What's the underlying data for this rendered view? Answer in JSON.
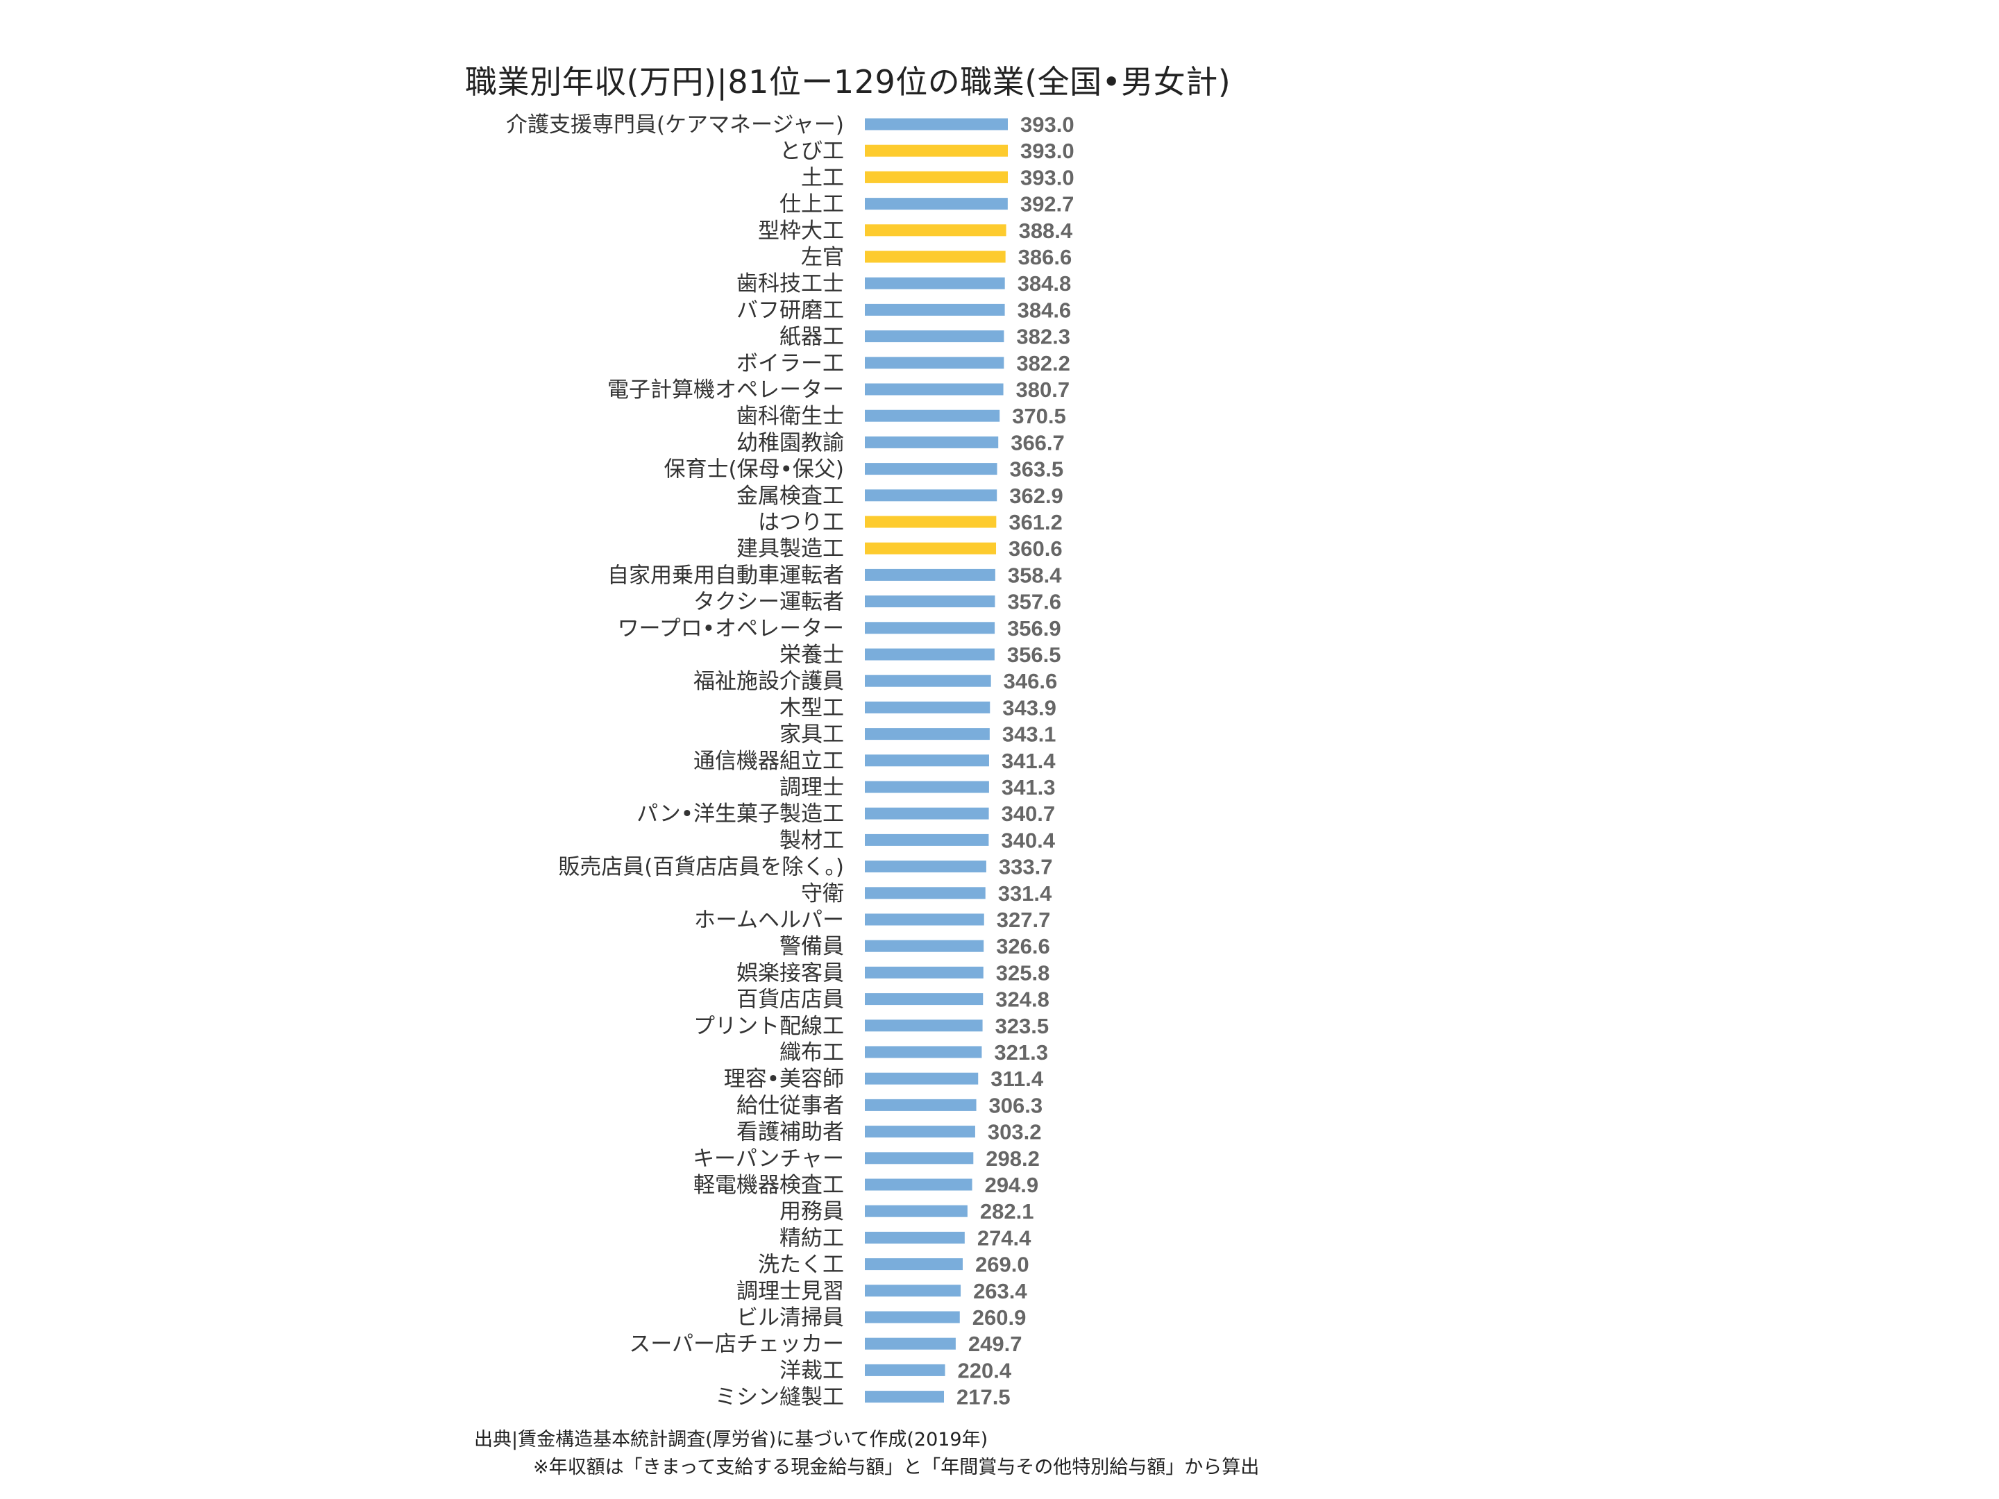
{
  "title": "職業別年収(万円)|81位ー129位の職業(全国•男女計)",
  "source": "出典|賃金構造基本統計調査(厚労省)に基づいて作成(2019年)",
  "note": "※年収額は「きまって支給する現金給与額」と「年間賞与その他特別給与額」から算出",
  "colors": {
    "default_bar": "#7aaddb",
    "highlight_bar": "#fdcb2e"
  },
  "chart_data": {
    "type": "bar",
    "orientation": "horizontal",
    "categories": [
      "介護支援専門員(ケアマネージャー)",
      "とび工",
      "土工",
      "仕上工",
      "型枠大工",
      "左官",
      "歯科技工士",
      "バフ研磨工",
      "紙器工",
      "ボイラー工",
      "電子計算機オペレーター",
      "歯科衛生士",
      "幼稚園教諭",
      "保育士(保母•保父)",
      "金属検査工",
      "はつり工",
      "建具製造工",
      "自家用乗用自動車運転者",
      "タクシー運転者",
      "ワープロ•オペレーター",
      "栄養士",
      "福祉施設介護員",
      "木型工",
      "家具工",
      "通信機器組立工",
      "調理士",
      "パン•洋生菓子製造工",
      "製材工",
      "販売店員(百貨店店員を除く。)",
      "守衛",
      "ホームヘルパー",
      "警備員",
      "娯楽接客員",
      "百貨店店員",
      "プリント配線工",
      "織布工",
      "理容•美容師",
      "給仕従事者",
      "看護補助者",
      "キーパンチャー",
      "軽電機器検査工",
      "用務員",
      "精紡工",
      "洗たく工",
      "調理士見習",
      "ビル清掃員",
      "スーパー店チェッカー",
      "洋裁工",
      "ミシン縫製工"
    ],
    "values": [
      393.0,
      393.0,
      393.0,
      392.7,
      388.4,
      386.6,
      384.8,
      384.6,
      382.3,
      382.2,
      380.7,
      370.5,
      366.7,
      363.5,
      362.9,
      361.2,
      360.6,
      358.4,
      357.6,
      356.9,
      356.5,
      346.6,
      343.9,
      343.1,
      341.4,
      341.3,
      340.7,
      340.4,
      333.7,
      331.4,
      327.7,
      326.6,
      325.8,
      324.8,
      323.5,
      321.3,
      311.4,
      306.3,
      303.2,
      298.2,
      294.9,
      282.1,
      274.4,
      269.0,
      263.4,
      260.9,
      249.7,
      220.4,
      217.5
    ],
    "highlighted": [
      false,
      true,
      true,
      false,
      true,
      true,
      false,
      false,
      false,
      false,
      false,
      false,
      false,
      false,
      false,
      true,
      true,
      false,
      false,
      false,
      false,
      false,
      false,
      false,
      false,
      false,
      false,
      false,
      false,
      false,
      false,
      false,
      false,
      false,
      false,
      false,
      false,
      false,
      false,
      false,
      false,
      false,
      false,
      false,
      false,
      false,
      false,
      false,
      false
    ],
    "value_format": "one decimal",
    "xlim": [
      0,
      393.0
    ],
    "grid": false,
    "legend": false
  }
}
